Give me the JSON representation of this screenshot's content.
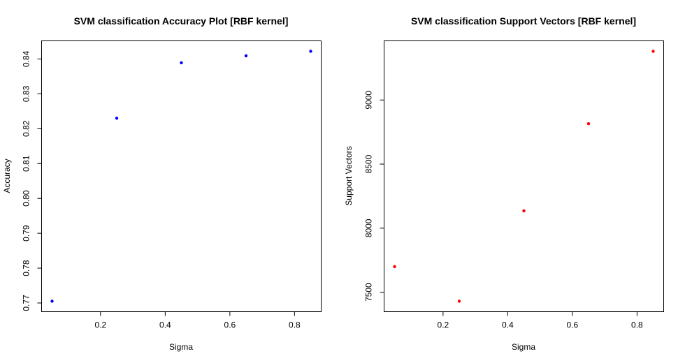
{
  "chart_data": [
    {
      "type": "scatter",
      "title": "SVM classification Accuracy Plot [RBF kernel]",
      "xlabel": "Sigma",
      "ylabel": "Accuracy",
      "xlim": [
        0.05,
        0.85
      ],
      "ylim": [
        0.7705,
        0.8422
      ],
      "xticks": [
        0.2,
        0.4,
        0.6,
        0.8
      ],
      "xtick_labels": [
        "0.2",
        "0.4",
        "0.6",
        "0.8"
      ],
      "yticks": [
        0.77,
        0.78,
        0.79,
        0.8,
        0.81,
        0.82,
        0.83,
        0.84
      ],
      "ytick_labels": [
        "0.77",
        "0.78",
        "0.79",
        "0.80",
        "0.81",
        "0.82",
        "0.83",
        "0.84"
      ],
      "grid": false,
      "color": "#0000ff",
      "series": [
        {
          "x": [
            0.05,
            0.25,
            0.45,
            0.65,
            0.85
          ],
          "y": [
            0.7705,
            0.823,
            0.8389,
            0.8409,
            0.8422
          ]
        }
      ]
    },
    {
      "type": "scatter",
      "title": "SVM classification Support Vectors [RBF kernel]",
      "xlabel": "Sigma",
      "ylabel": "Support Vectors",
      "xlim": [
        0.05,
        0.85
      ],
      "ylim": [
        7430,
        9380
      ],
      "xticks": [
        0.2,
        0.4,
        0.6,
        0.8
      ],
      "xtick_labels": [
        "0.2",
        "0.4",
        "0.6",
        "0.8"
      ],
      "yticks": [
        7500,
        8000,
        8500,
        9000
      ],
      "ytick_labels": [
        "7500",
        "8000",
        "8500",
        "9000"
      ],
      "grid": false,
      "color": "#ff0000",
      "series": [
        {
          "x": [
            0.05,
            0.25,
            0.45,
            0.65,
            0.85
          ],
          "y": [
            7700,
            7430,
            8135,
            8815,
            9380
          ]
        }
      ]
    }
  ]
}
